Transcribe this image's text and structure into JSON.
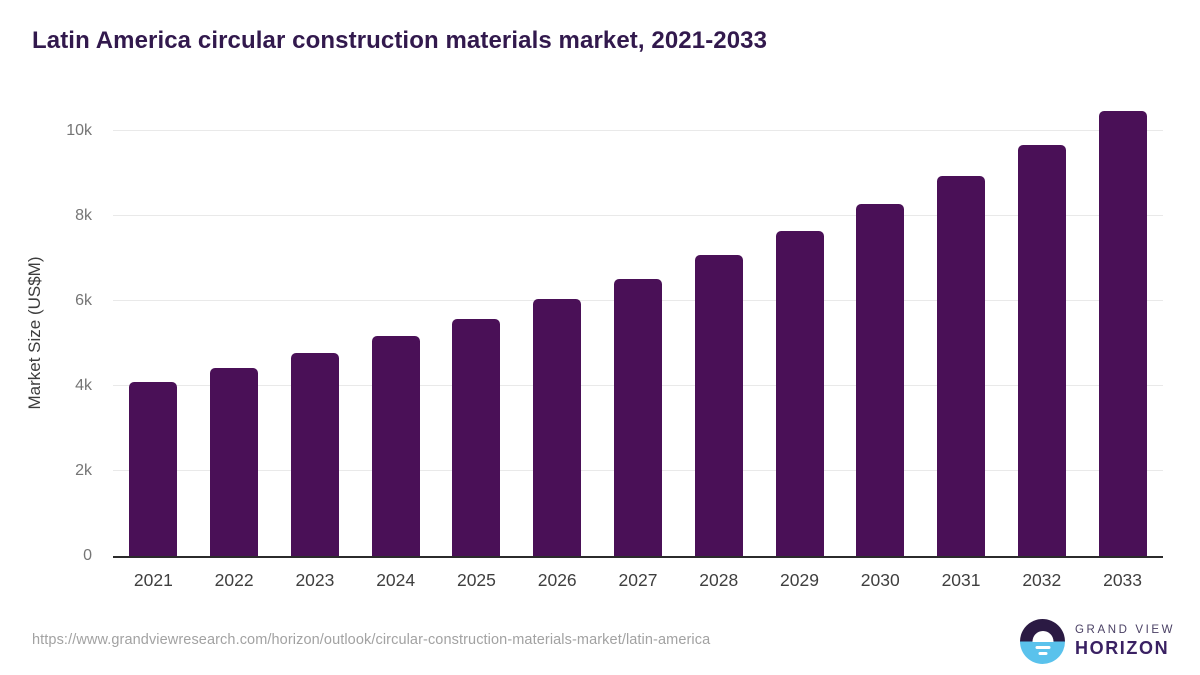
{
  "title": "Latin America circular construction materials market, 2021-2033",
  "chart_data": {
    "type": "bar",
    "title": "Latin America circular construction materials market, 2021-2033",
    "categories": [
      "2021",
      "2022",
      "2023",
      "2024",
      "2025",
      "2026",
      "2027",
      "2028",
      "2029",
      "2030",
      "2031",
      "2032",
      "2033"
    ],
    "values": [
      4080,
      4430,
      4780,
      5160,
      5580,
      6050,
      6520,
      7080,
      7640,
      8280,
      8930,
      9650,
      10460
    ],
    "xlabel": "",
    "ylabel": "Market Size (US$M)",
    "ylim": [
      0,
      10500
    ],
    "yticks": [
      {
        "value": 0,
        "label": "0"
      },
      {
        "value": 2000,
        "label": "2k"
      },
      {
        "value": 4000,
        "label": "4k"
      },
      {
        "value": 6000,
        "label": "6k"
      },
      {
        "value": 8000,
        "label": "8k"
      },
      {
        "value": 10000,
        "label": "10k"
      }
    ],
    "grid": true,
    "legend": "none",
    "bar_color": "#4a1057"
  },
  "footer": {
    "source_url": "https://www.grandviewresearch.com/horizon/outlook/circular-construction-materials-market/latin-america",
    "logo": {
      "brand_top": "GRAND VIEW",
      "brand_bottom": "HORIZON"
    }
  },
  "colors": {
    "title": "#32194d",
    "bar": "#4a1057",
    "gridline": "#e9e9e9",
    "axis_line": "#2b2b2b",
    "tick_label": "#757575",
    "x_label": "#3f3f3f",
    "url_text": "#a2a2a2",
    "logo_dark": "#2b1a43",
    "logo_blue": "#5ac2ec"
  }
}
